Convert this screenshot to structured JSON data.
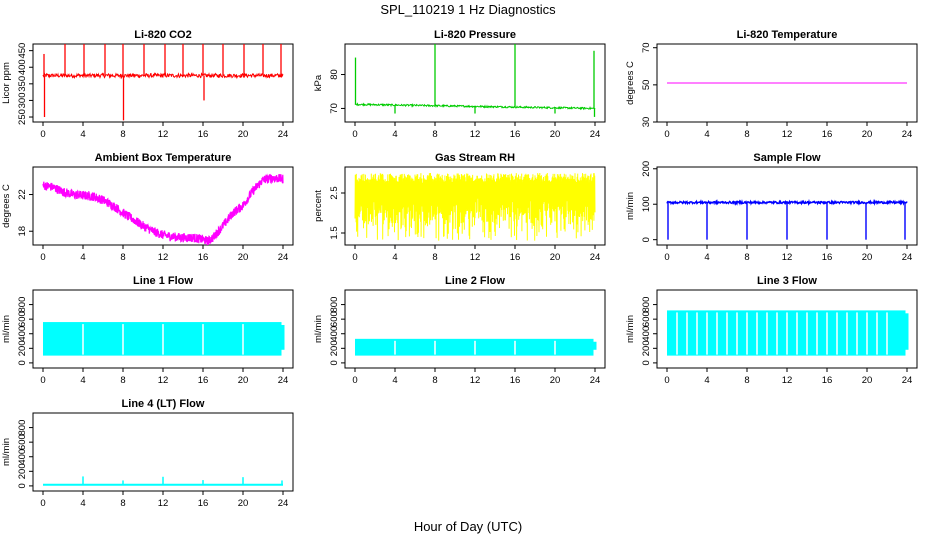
{
  "page": {
    "title": "SPL_110219  1 Hz Diagnostics",
    "xlabel": "Hour of Day (UTC)"
  },
  "chart_data": [
    {
      "type": "line",
      "title": "Li-820 CO2",
      "ylabel": "Licor ppm",
      "color": "#ff0000",
      "xlim": [
        0,
        24
      ],
      "ylim": [
        235,
        470
      ],
      "x_ticks": [
        0,
        4,
        8,
        12,
        16,
        20,
        24
      ],
      "y_ticks": [
        250,
        300,
        350,
        400,
        450
      ],
      "baseline": 375,
      "noise": 6,
      "spikes": [
        {
          "x": 0.1,
          "y": 440
        },
        {
          "x": 0.15,
          "y": 250
        },
        {
          "x": 2.2,
          "y": 470
        },
        {
          "x": 4.1,
          "y": 470
        },
        {
          "x": 6.2,
          "y": 470
        },
        {
          "x": 8.0,
          "y": 470
        },
        {
          "x": 8.05,
          "y": 240
        },
        {
          "x": 10.1,
          "y": 470
        },
        {
          "x": 12.2,
          "y": 470
        },
        {
          "x": 14.0,
          "y": 470
        },
        {
          "x": 16.0,
          "y": 470
        },
        {
          "x": 16.1,
          "y": 300
        },
        {
          "x": 18.0,
          "y": 470
        },
        {
          "x": 20.1,
          "y": 470
        },
        {
          "x": 22.0,
          "y": 470
        },
        {
          "x": 23.8,
          "y": 470
        }
      ]
    },
    {
      "type": "line",
      "title": "Li-820 Pressure",
      "ylabel": "kPa",
      "color": "#00cc00",
      "xlim": [
        0,
        24
      ],
      "ylim": [
        66,
        89
      ],
      "x_ticks": [
        0,
        4,
        8,
        12,
        16,
        20,
        24
      ],
      "y_ticks": [
        70,
        80
      ],
      "start": 71.2,
      "end": 70.0,
      "noise": 0.25,
      "spikes": [
        {
          "x": 0.05,
          "y": 85
        },
        {
          "x": 4.0,
          "y": 68.5
        },
        {
          "x": 8.0,
          "y": 89
        },
        {
          "x": 12.0,
          "y": 68.5
        },
        {
          "x": 16.0,
          "y": 89
        },
        {
          "x": 20.0,
          "y": 68.5
        },
        {
          "x": 23.9,
          "y": 87
        },
        {
          "x": 23.95,
          "y": 67.5
        }
      ]
    },
    {
      "type": "line",
      "title": "Li-820 Temperature",
      "ylabel": "degrees C",
      "color": "#ff00ff",
      "xlim": [
        0,
        24
      ],
      "ylim": [
        30,
        72
      ],
      "x_ticks": [
        0,
        4,
        8,
        12,
        16,
        20,
        24
      ],
      "y_ticks": [
        30,
        50,
        70
      ],
      "value": 51
    },
    {
      "type": "line",
      "title": "Ambient Box Temperature",
      "ylabel": "degrees C",
      "color": "#ff00ff",
      "xlim": [
        0,
        24
      ],
      "ylim": [
        16.5,
        25
      ],
      "x_ticks": [
        0,
        4,
        8,
        12,
        16,
        20,
        24
      ],
      "y_ticks": [
        18,
        22
      ],
      "x": [
        0,
        1,
        2,
        3,
        4,
        5,
        6,
        7,
        8,
        9,
        10,
        11,
        12,
        13,
        14,
        15,
        16,
        16.5,
        17,
        18,
        19,
        20,
        21,
        22,
        23,
        24
      ],
      "y": [
        23.0,
        22.8,
        22.3,
        22.0,
        21.9,
        21.8,
        21.4,
        20.8,
        20.0,
        19.3,
        18.6,
        18.0,
        17.6,
        17.4,
        17.3,
        17.3,
        17.1,
        16.9,
        17.3,
        18.6,
        20.0,
        20.8,
        22.4,
        23.6,
        23.8,
        23.7
      ],
      "band": 0.5
    },
    {
      "type": "line",
      "title": "Gas Stream RH",
      "ylabel": "percent",
      "color": "#ffff00",
      "xlim": [
        0,
        24
      ],
      "ylim": [
        1.2,
        3.15
      ],
      "x_ticks": [
        0,
        4,
        8,
        12,
        16,
        20,
        24
      ],
      "y_ticks": [
        1.5,
        2.5
      ],
      "band_low": 1.3,
      "band_high": 3.0
    },
    {
      "type": "line",
      "title": "Sample Flow",
      "ylabel": "ml/min",
      "color": "#0000ff",
      "xlim": [
        0,
        24
      ],
      "ylim": [
        -15,
        205
      ],
      "x_ticks": [
        0,
        4,
        8,
        12,
        16,
        20,
        24
      ],
      "y_ticks": [
        0,
        100,
        200
      ],
      "baseline": 105,
      "noise": 3,
      "dips": [
        0.1,
        4.0,
        8.0,
        12.0,
        16.0,
        19.9,
        23.8
      ]
    },
    {
      "type": "line",
      "title": "Line 1 Flow",
      "ylabel": "ml/min",
      "color": "#00ffff",
      "xlim": [
        0,
        24
      ],
      "ylim": [
        -70,
        1000
      ],
      "x_ticks": [
        0,
        4,
        8,
        12,
        16,
        20,
        24
      ],
      "y_ticks": [
        0,
        200,
        400,
        600,
        800
      ],
      "band_low": 100,
      "band_high": 560,
      "gaps": [
        4.0,
        8.0,
        12.0,
        16.0,
        20.0
      ]
    },
    {
      "type": "line",
      "title": "Line 2 Flow",
      "ylabel": "ml/min",
      "color": "#00ffff",
      "xlim": [
        0,
        24
      ],
      "ylim": [
        -70,
        1000
      ],
      "x_ticks": [
        0,
        4,
        8,
        12,
        16,
        20,
        24
      ],
      "y_ticks": [
        0,
        200,
        400,
        600,
        800
      ],
      "band_low": 100,
      "band_high": 330,
      "gaps": [
        4.0,
        8.0,
        12.0,
        16.0,
        20.0
      ]
    },
    {
      "type": "line",
      "title": "Line 3 Flow",
      "ylabel": "ml/min",
      "color": "#00ffff",
      "xlim": [
        0,
        24
      ],
      "ylim": [
        -70,
        1000
      ],
      "x_ticks": [
        0,
        4,
        8,
        12,
        16,
        20,
        24
      ],
      "y_ticks": [
        0,
        200,
        400,
        600,
        800
      ],
      "band_low": 100,
      "band_high": 720,
      "gaps": [
        1.0,
        2.0,
        3.0,
        4.0,
        5.0,
        6.0,
        7.0,
        8.0,
        9.0,
        10.0,
        11.0,
        12.0,
        13.0,
        14.0,
        15.0,
        16.0,
        17.0,
        18.0,
        19.0,
        20.0,
        21.0,
        22.0
      ]
    },
    {
      "type": "line",
      "title": "Line 4 (LT) Flow",
      "ylabel": "ml/min",
      "color": "#00ffff",
      "xlim": [
        0,
        24
      ],
      "ylim": [
        -70,
        1000
      ],
      "x_ticks": [
        0,
        4,
        8,
        12,
        16,
        20,
        24
      ],
      "y_ticks": [
        0,
        200,
        400,
        600,
        800
      ],
      "baseline": 15,
      "spikes": [
        {
          "x": 4.0,
          "y": 130
        },
        {
          "x": 8.0,
          "y": 75
        },
        {
          "x": 12.0,
          "y": 125
        },
        {
          "x": 16.0,
          "y": 80
        },
        {
          "x": 20.0,
          "y": 120
        },
        {
          "x": 23.9,
          "y": 75
        }
      ]
    }
  ]
}
